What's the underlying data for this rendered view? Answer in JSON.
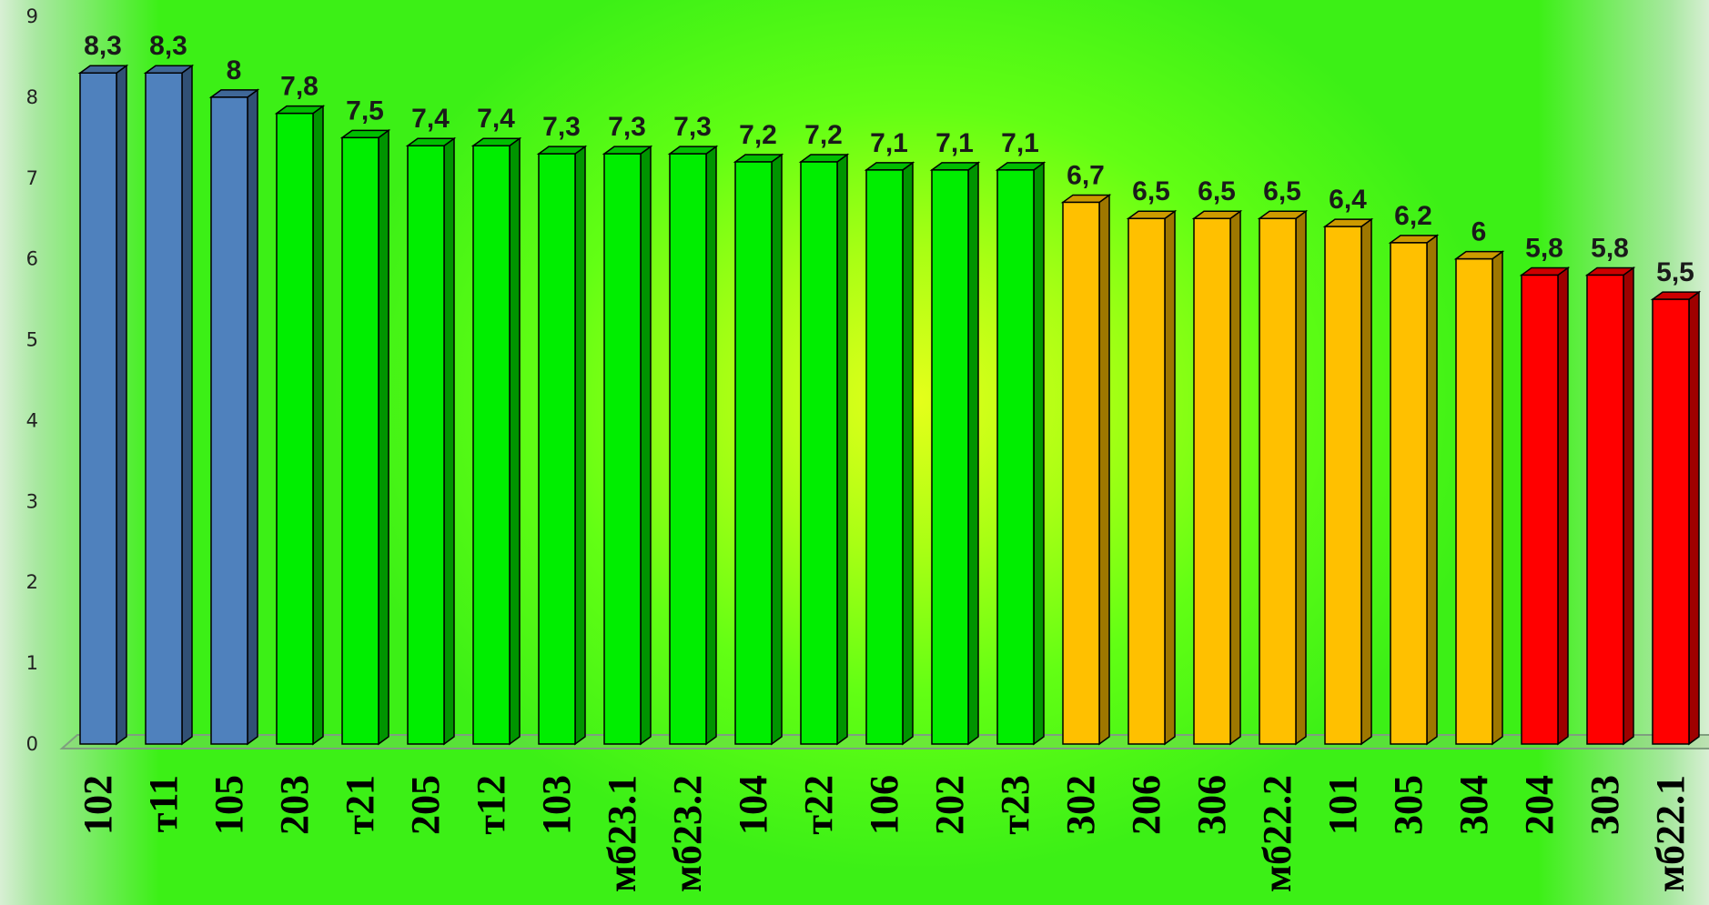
{
  "chart_data": {
    "type": "bar",
    "categories": [
      "102",
      "т11",
      "105",
      "203",
      "т21",
      "205",
      "т12",
      "103",
      "мб23.1",
      "мб23.2",
      "104",
      "т22",
      "106",
      "202",
      "т23",
      "302",
      "206",
      "306",
      "мб22.2",
      "101",
      "305",
      "304",
      "204",
      "303",
      "мб22.1"
    ],
    "values": [
      8.3,
      8.3,
      8,
      7.8,
      7.5,
      7.4,
      7.4,
      7.3,
      7.3,
      7.3,
      7.2,
      7.2,
      7.1,
      7.1,
      7.1,
      6.7,
      6.5,
      6.5,
      6.5,
      6.4,
      6.2,
      6,
      5.8,
      5.8,
      5.5
    ],
    "value_labels": [
      "8,3",
      "8,3",
      "8",
      "7,8",
      "7,5",
      "7,4",
      "7,4",
      "7,3",
      "7,3",
      "7,3",
      "7,2",
      "7,2",
      "7,1",
      "7,1",
      "7,1",
      "6,7",
      "6,5",
      "6,5",
      "6,5",
      "6,4",
      "6,2",
      "6",
      "5,8",
      "5,8",
      "5,5"
    ],
    "bar_colors": [
      "#4f81bd",
      "#4f81bd",
      "#4f81bd",
      "#00ee00",
      "#00ee00",
      "#00ee00",
      "#00ee00",
      "#00ee00",
      "#00ee00",
      "#00ee00",
      "#00ee00",
      "#00ee00",
      "#00ee00",
      "#00ee00",
      "#00ee00",
      "#ffc000",
      "#ffc000",
      "#ffc000",
      "#ffc000",
      "#ffc000",
      "#ffc000",
      "#ffc000",
      "#ff0000",
      "#ff0000",
      "#ff0000"
    ],
    "yticks": [
      "0",
      "1",
      "2",
      "3",
      "4",
      "5",
      "6",
      "7",
      "8",
      "9"
    ],
    "ylim": [
      0,
      9
    ],
    "grid": false,
    "legend": "none",
    "style": "3d-column"
  }
}
